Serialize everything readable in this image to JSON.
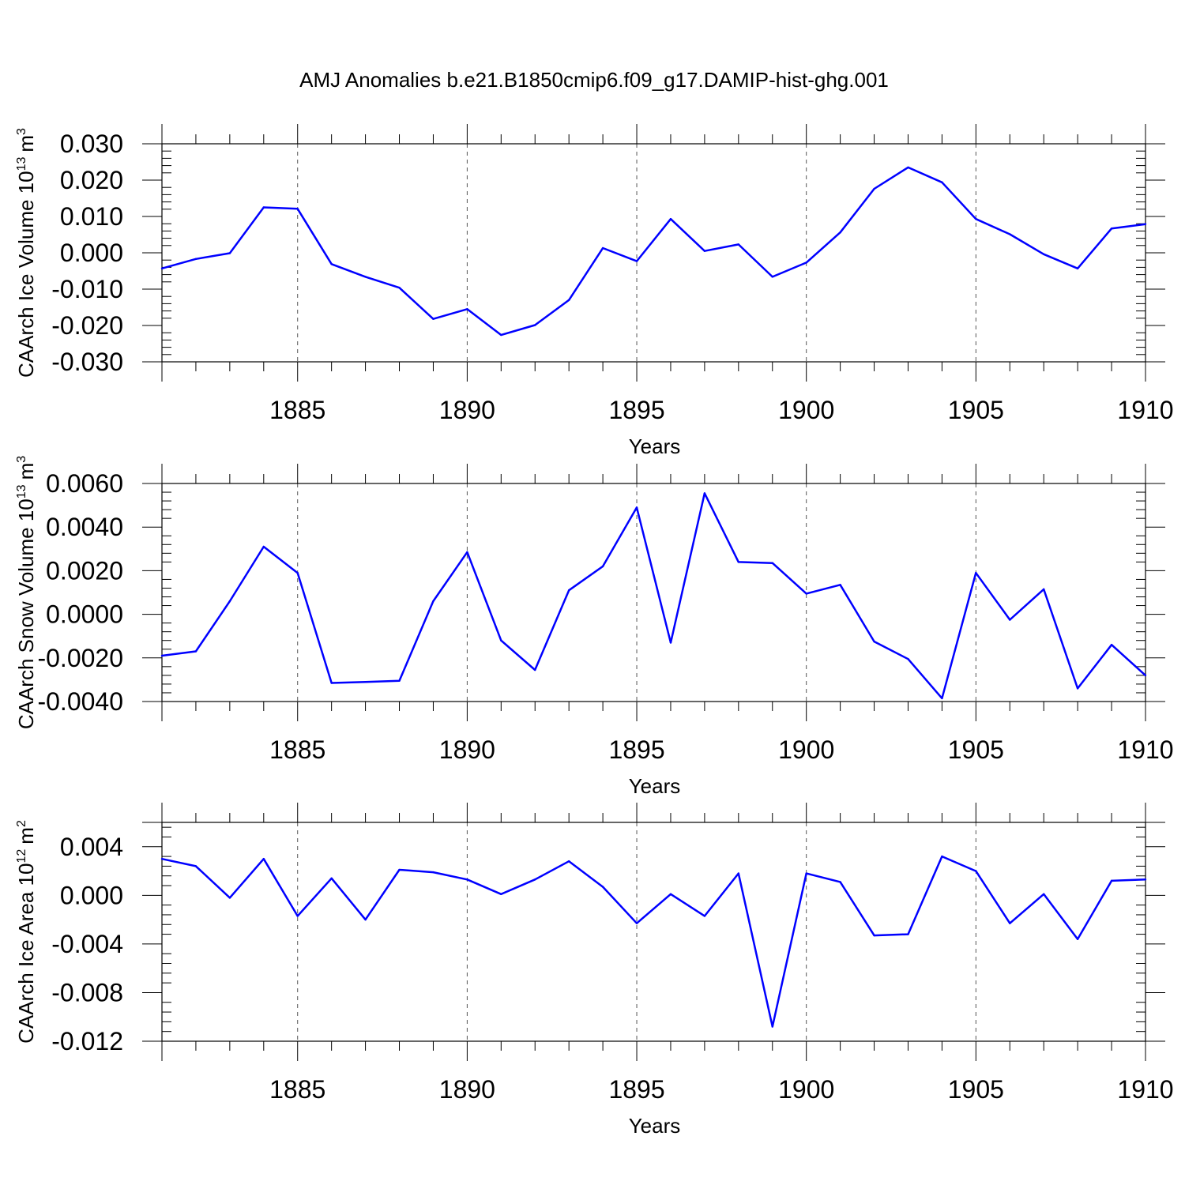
{
  "chart_data": [
    {
      "type": "line",
      "title": "AMJ Anomalies b.e21.B1850cmip6.f09_g17.DAMIP-hist-ghg.001",
      "xlabel": "Years",
      "ylabel": "CAArch Ice Volume 10",
      "ylabel_sup": "13",
      "ylabel_unit": "m",
      "ylabel_unit_sup": "3",
      "xlim": [
        1881,
        1910
      ],
      "ylim": [
        -0.03,
        0.03
      ],
      "x_ticks": [
        1885,
        1890,
        1895,
        1900,
        1905,
        1910
      ],
      "x_tick_labels": [
        "1885",
        "1890",
        "1895",
        "1900",
        "1905",
        "1910"
      ],
      "y_ticks": [
        -0.03,
        -0.02,
        -0.01,
        0.0,
        0.01,
        0.02,
        0.03
      ],
      "y_tick_labels": [
        "-0.030",
        "-0.020",
        "-0.010",
        "0.000",
        "0.010",
        "0.020",
        "0.030"
      ],
      "grid": "vertical-dashed",
      "series": [
        {
          "name": "CAArch Ice Volume",
          "color": "#0000ff",
          "x": [
            1881,
            1882,
            1883,
            1884,
            1885,
            1886,
            1887,
            1888,
            1889,
            1890,
            1891,
            1892,
            1893,
            1894,
            1895,
            1896,
            1897,
            1898,
            1899,
            1900,
            1901,
            1902,
            1903,
            1904,
            1905,
            1906,
            1907,
            1908,
            1909,
            1910
          ],
          "values": [
            -0.0043,
            -0.0017,
            -0.0001,
            0.0125,
            0.0121,
            -0.0031,
            -0.0066,
            -0.0096,
            -0.0182,
            -0.0155,
            -0.0226,
            -0.0199,
            -0.013,
            0.0013,
            -0.0023,
            0.0093,
            0.0005,
            0.0023,
            -0.0066,
            -0.0027,
            0.0056,
            0.0176,
            0.0235,
            0.0194,
            0.0093,
            0.0051,
            -0.0004,
            -0.0043,
            0.0067,
            0.0079
          ]
        }
      ]
    },
    {
      "type": "line",
      "title": "",
      "xlabel": "Years",
      "ylabel": "CAArch Snow Volume 10",
      "ylabel_sup": "13",
      "ylabel_unit": "m",
      "ylabel_unit_sup": "3",
      "xlim": [
        1881,
        1910
      ],
      "ylim": [
        -0.004,
        0.006
      ],
      "x_ticks": [
        1885,
        1890,
        1895,
        1900,
        1905,
        1910
      ],
      "x_tick_labels": [
        "1885",
        "1890",
        "1895",
        "1900",
        "1905",
        "1910"
      ],
      "y_ticks": [
        -0.004,
        -0.002,
        0.0,
        0.002,
        0.004,
        0.006
      ],
      "y_tick_labels": [
        "-0.0040",
        "-0.0020",
        "0.0000",
        "0.0020",
        "0.0040",
        "0.0060"
      ],
      "grid": "vertical-dashed",
      "series": [
        {
          "name": "CAArch Snow Volume",
          "color": "#0000ff",
          "x": [
            1881,
            1882,
            1883,
            1884,
            1885,
            1886,
            1887,
            1888,
            1889,
            1890,
            1891,
            1892,
            1893,
            1894,
            1895,
            1896,
            1897,
            1898,
            1899,
            1900,
            1901,
            1902,
            1903,
            1904,
            1905,
            1906,
            1907,
            1908,
            1909,
            1910
          ],
          "values": [
            -0.0019,
            -0.0017,
            0.0006,
            0.0031,
            0.0019,
            -0.00315,
            -0.0031,
            -0.00305,
            0.0006,
            0.00285,
            -0.0012,
            -0.00255,
            0.0011,
            0.0022,
            0.0049,
            -0.0013,
            0.00555,
            0.0024,
            0.00235,
            0.00095,
            0.00135,
            -0.00125,
            -0.00205,
            -0.00385,
            0.0019,
            -0.00025,
            0.00115,
            -0.0034,
            -0.0014,
            -0.0028
          ]
        }
      ]
    },
    {
      "type": "line",
      "title": "",
      "xlabel": "Years",
      "ylabel": "CAArch Ice Area 10",
      "ylabel_sup": "12",
      "ylabel_unit": "m",
      "ylabel_unit_sup": "2",
      "xlim": [
        1881,
        1910
      ],
      "ylim": [
        -0.012,
        0.006
      ],
      "x_ticks": [
        1885,
        1890,
        1895,
        1900,
        1905,
        1910
      ],
      "x_tick_labels": [
        "1885",
        "1890",
        "1895",
        "1900",
        "1905",
        "1910"
      ],
      "y_ticks": [
        -0.012,
        -0.008,
        -0.004,
        0.0,
        0.004
      ],
      "y_tick_labels": [
        "-0.012",
        "-0.008",
        "-0.004",
        "0.000",
        "0.004"
      ],
      "grid": "vertical-dashed",
      "series": [
        {
          "name": "CAArch Ice Area",
          "color": "#0000ff",
          "x": [
            1881,
            1882,
            1883,
            1884,
            1885,
            1886,
            1887,
            1888,
            1889,
            1890,
            1891,
            1892,
            1893,
            1894,
            1895,
            1896,
            1897,
            1898,
            1899,
            1900,
            1901,
            1902,
            1903,
            1904,
            1905,
            1906,
            1907,
            1908,
            1909,
            1910
          ],
          "values": [
            0.003,
            0.0024,
            -0.0002,
            0.003,
            -0.0017,
            0.0014,
            -0.002,
            0.0021,
            0.0019,
            0.0013,
            0.0001,
            0.0013,
            0.0028,
            0.0007,
            -0.0023,
            0.0001,
            -0.0017,
            0.0018,
            -0.0108,
            0.0018,
            0.0011,
            -0.0033,
            -0.0032,
            0.0032,
            0.002,
            -0.0023,
            0.0001,
            -0.0036,
            0.0012,
            0.0013
          ]
        }
      ]
    }
  ]
}
